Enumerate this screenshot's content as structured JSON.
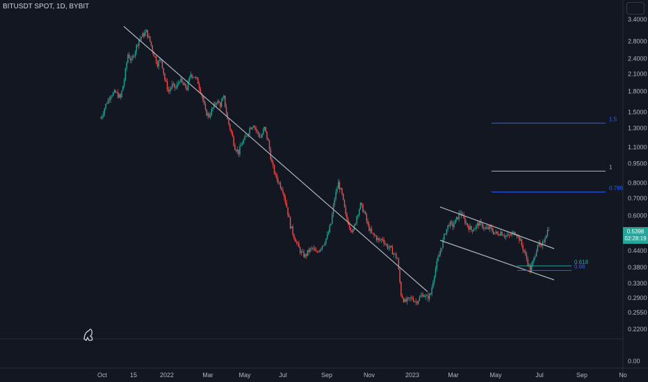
{
  "header": {
    "symbol_title": "BITUSDT SPOT, 1D, BYBIT"
  },
  "price_label": {
    "price": "0.5398",
    "countdown": "02:28:19"
  },
  "colors": {
    "background": "#131722",
    "up": "#26a69a",
    "down": "#ef5350",
    "trendline": "#b2b5be",
    "fib_blue": "#2962ff"
  },
  "chart_data": {
    "type": "candlestick",
    "price_axis": {
      "scale": "log",
      "ticks": [
        "3.4000",
        "2.8000",
        "2.4000",
        "2.1000",
        "1.8000",
        "1.5000",
        "1.3000",
        "1.1000",
        "0.9500",
        "0.8000",
        "0.7000",
        "0.6000",
        "0.4400",
        "0.3800",
        "0.3300",
        "0.2900",
        "0.2550",
        "0.2200",
        "0.00"
      ]
    },
    "time_axis": {
      "labels": [
        "Oct",
        "15",
        "2022",
        "Mar",
        "May",
        "Jul",
        "Sep",
        "Nov",
        "2023",
        "Mar",
        "May",
        "Jul",
        "Sep",
        "No"
      ]
    },
    "fib_levels": [
      {
        "label": "1.5",
        "value": 1.36
      },
      {
        "label": "1",
        "value": 0.89
      },
      {
        "label": "0.786",
        "value": 0.74
      },
      {
        "label": "0.618",
        "value": 0.385
      },
      {
        "label": "0.66",
        "value": 0.37
      }
    ],
    "path_points": [
      [
        0,
        1.42
      ],
      [
        4,
        1.6
      ],
      [
        8,
        1.75
      ],
      [
        12,
        1.78
      ],
      [
        16,
        1.7
      ],
      [
        19,
        2.0
      ],
      [
        22,
        2.5
      ],
      [
        25,
        2.35
      ],
      [
        28,
        2.6
      ],
      [
        31,
        2.85
      ],
      [
        34,
        2.95
      ],
      [
        37,
        3.05
      ],
      [
        40,
        2.8
      ],
      [
        43,
        2.5
      ],
      [
        46,
        2.3
      ],
      [
        49,
        2.4
      ],
      [
        52,
        2.0
      ],
      [
        55,
        1.8
      ],
      [
        58,
        1.9
      ],
      [
        61,
        1.85
      ],
      [
        64,
        2.0
      ],
      [
        67,
        1.9
      ],
      [
        70,
        1.85
      ],
      [
        73,
        2.1
      ],
      [
        76,
        2.05
      ],
      [
        79,
        1.95
      ],
      [
        82,
        1.75
      ],
      [
        85,
        1.5
      ],
      [
        88,
        1.45
      ],
      [
        91,
        1.55
      ],
      [
        94,
        1.65
      ],
      [
        97,
        1.6
      ],
      [
        100,
        1.7
      ],
      [
        103,
        1.4
      ],
      [
        106,
        1.25
      ],
      [
        109,
        1.1
      ],
      [
        112,
        1.05
      ],
      [
        115,
        1.15
      ],
      [
        118,
        1.2
      ],
      [
        121,
        1.3
      ],
      [
        124,
        1.35
      ],
      [
        127,
        1.25
      ],
      [
        130,
        1.2
      ],
      [
        133,
        1.3
      ],
      [
        136,
        1.15
      ],
      [
        139,
        0.95
      ],
      [
        142,
        0.85
      ],
      [
        145,
        0.8
      ],
      [
        148,
        0.75
      ],
      [
        151,
        0.65
      ],
      [
        154,
        0.55
      ],
      [
        157,
        0.5
      ],
      [
        160,
        0.46
      ],
      [
        163,
        0.43
      ],
      [
        166,
        0.42
      ],
      [
        169,
        0.44
      ],
      [
        172,
        0.45
      ],
      [
        175,
        0.43
      ],
      [
        178,
        0.45
      ],
      [
        181,
        0.47
      ],
      [
        184,
        0.5
      ],
      [
        187,
        0.56
      ],
      [
        190,
        0.7
      ],
      [
        193,
        0.8
      ],
      [
        196,
        0.72
      ],
      [
        199,
        0.6
      ],
      [
        202,
        0.55
      ],
      [
        205,
        0.52
      ],
      [
        208,
        0.6
      ],
      [
        211,
        0.66
      ],
      [
        214,
        0.62
      ],
      [
        217,
        0.55
      ],
      [
        220,
        0.51
      ],
      [
        223,
        0.5
      ],
      [
        226,
        0.48
      ],
      [
        229,
        0.49
      ],
      [
        232,
        0.46
      ],
      [
        235,
        0.45
      ],
      [
        238,
        0.43
      ],
      [
        241,
        0.41
      ],
      [
        244,
        0.3
      ],
      [
        247,
        0.28
      ],
      [
        250,
        0.285
      ],
      [
        253,
        0.29
      ],
      [
        256,
        0.28
      ],
      [
        259,
        0.29
      ],
      [
        262,
        0.3
      ],
      [
        265,
        0.29
      ],
      [
        268,
        0.3
      ],
      [
        271,
        0.36
      ],
      [
        274,
        0.41
      ],
      [
        277,
        0.46
      ],
      [
        280,
        0.52
      ],
      [
        283,
        0.56
      ],
      [
        286,
        0.55
      ],
      [
        289,
        0.58
      ],
      [
        292,
        0.62
      ],
      [
        295,
        0.58
      ],
      [
        298,
        0.55
      ],
      [
        301,
        0.53
      ],
      [
        304,
        0.54
      ],
      [
        307,
        0.56
      ],
      [
        310,
        0.55
      ],
      [
        313,
        0.53
      ],
      [
        316,
        0.54
      ],
      [
        319,
        0.52
      ],
      [
        322,
        0.51
      ],
      [
        325,
        0.52
      ],
      [
        328,
        0.505
      ],
      [
        331,
        0.5
      ],
      [
        334,
        0.51
      ],
      [
        337,
        0.52
      ],
      [
        340,
        0.49
      ],
      [
        343,
        0.45
      ],
      [
        346,
        0.41
      ],
      [
        349,
        0.37
      ],
      [
        352,
        0.41
      ],
      [
        355,
        0.47
      ],
      [
        358,
        0.45
      ],
      [
        361,
        0.5
      ],
      [
        364,
        0.54
      ]
    ]
  }
}
